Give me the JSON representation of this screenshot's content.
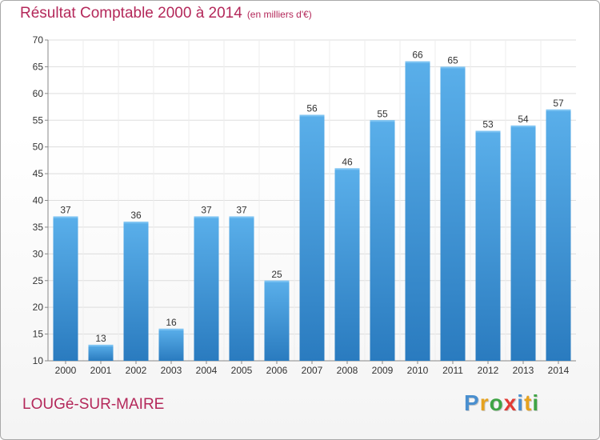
{
  "header": {
    "title": "Résultat Comptable 2000 à 2014",
    "subtitle": "(en milliers d'€)"
  },
  "footer": {
    "commune": "LOUGé-SUR-MAIRE",
    "brand": "Proxiti",
    "brand_letters": [
      {
        "ch": "P",
        "color": "#4a8fcf"
      },
      {
        "ch": "r",
        "color": "#e6a21f"
      },
      {
        "ch": "o",
        "color": "#3fa445"
      },
      {
        "ch": "x",
        "color": "#e23b34"
      },
      {
        "ch": "i",
        "color": "#4a8fcf"
      },
      {
        "ch": "t",
        "color": "#e6a21f"
      },
      {
        "ch": "i",
        "color": "#3fa445"
      }
    ]
  },
  "chart_data": {
    "type": "bar",
    "title": "Résultat Comptable 2000 à 2014",
    "subtitle": "(en milliers d'€)",
    "categories": [
      "2000",
      "2001",
      "2002",
      "2003",
      "2004",
      "2005",
      "2006",
      "2007",
      "2008",
      "2009",
      "2010",
      "2011",
      "2012",
      "2013",
      "2014"
    ],
    "values": [
      37,
      13,
      36,
      16,
      37,
      37,
      25,
      56,
      46,
      55,
      66,
      65,
      53,
      54,
      57
    ],
    "ylim": [
      10,
      70
    ],
    "yticks": [
      10,
      15,
      20,
      25,
      30,
      35,
      40,
      45,
      50,
      55,
      60,
      65,
      70
    ],
    "grid": true,
    "bar_color_top": "#5aafea",
    "bar_color_bottom": "#2a7bbf",
    "label_color": "#333333",
    "grid_color": "#dddddd"
  }
}
